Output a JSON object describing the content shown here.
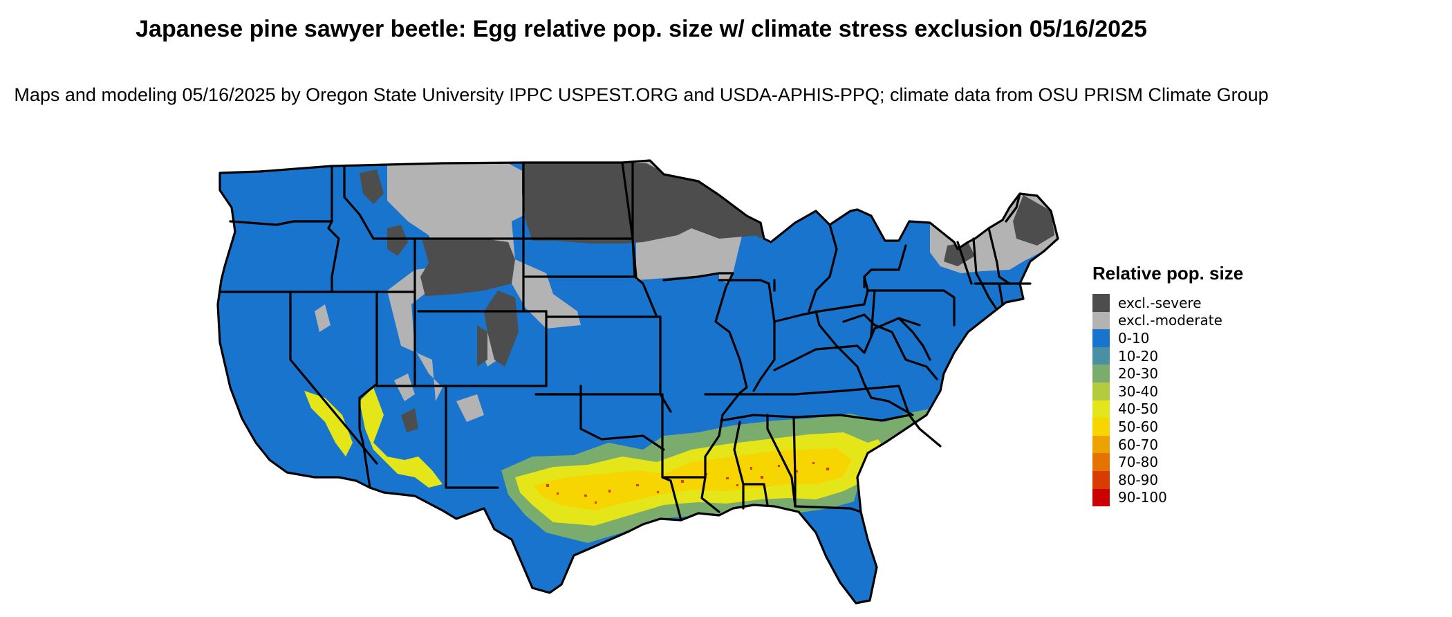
{
  "title": "Japanese pine sawyer beetle: Egg relative pop. size w/ climate stress exclusion 05/16/2025",
  "subtitle": "Maps and modeling 05/16/2025 by Oregon State University IPPC USPEST.ORG and USDA-APHIS-PPQ; climate data from OSU PRISM Climate Group",
  "legend": {
    "title": "Relative pop. size",
    "items": [
      {
        "label": "excl.-severe",
        "color": "#4d4d4d"
      },
      {
        "label": "excl.-moderate",
        "color": "#b3b3b3"
      },
      {
        "label": "0-10",
        "color": "#1874cd"
      },
      {
        "label": "10-20",
        "color": "#4a90a4"
      },
      {
        "label": "20-30",
        "color": "#7aac6e"
      },
      {
        "label": "30-40",
        "color": "#b2cc3e"
      },
      {
        "label": "40-50",
        "color": "#e4e619"
      },
      {
        "label": "50-60",
        "color": "#f7d500"
      },
      {
        "label": "60-70",
        "color": "#eea200"
      },
      {
        "label": "70-80",
        "color": "#e57300"
      },
      {
        "label": "80-90",
        "color": "#d93b00"
      },
      {
        "label": "90-100",
        "color": "#cc0000"
      }
    ]
  },
  "map": {
    "region": "Contiguous United States",
    "colors": {
      "severe": "#4d4d4d",
      "moderate": "#b3b3b3",
      "low": "#1874cd",
      "band1": "#7aac6e",
      "band2": "#e4e619",
      "band3": "#f7d500",
      "peak": "#d93b00",
      "border": "#000000"
    }
  }
}
